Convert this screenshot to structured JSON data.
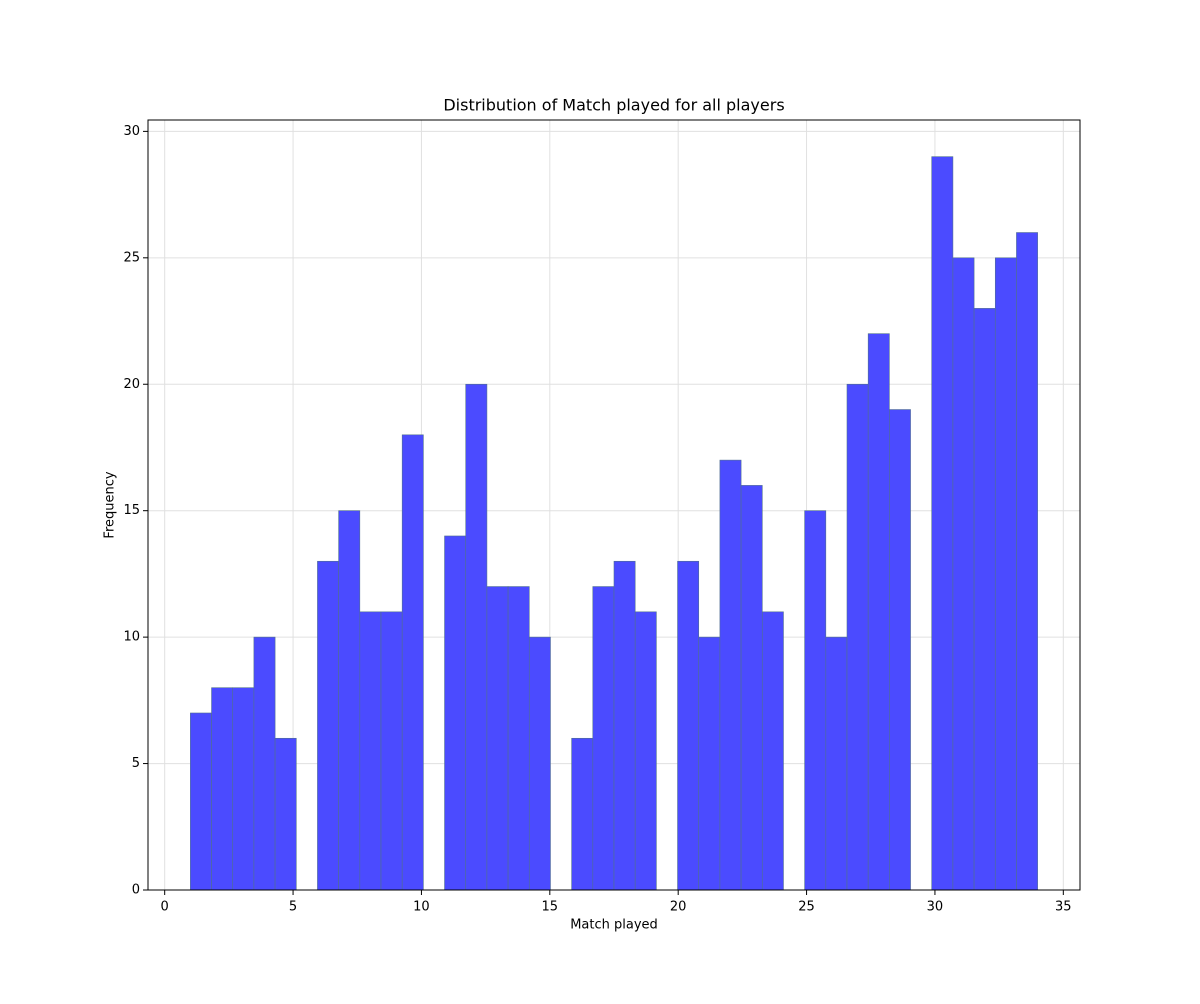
{
  "chart_data": {
    "type": "histogram",
    "title": "Distribution of Match played for all players",
    "x_label": "Match played",
    "y_label": "Frequency",
    "bins": [
      1,
      1.825,
      2.65,
      3.475,
      4.3,
      5.125,
      5.95,
      6.775,
      7.6,
      8.425,
      9.25,
      10.075,
      10.9,
      11.725,
      12.55,
      13.375,
      14.2,
      15.025,
      15.85,
      16.675,
      17.5,
      18.325,
      19.15,
      19.975,
      20.8,
      21.625,
      22.45,
      23.275,
      24.1,
      24.925,
      25.75,
      26.575,
      27.4,
      28.225,
      29.05,
      29.875,
      30.7,
      31.525,
      32.35,
      33.175,
      34
    ],
    "values": [
      7,
      8,
      8,
      10,
      6,
      0,
      13,
      15,
      11,
      11,
      18,
      0,
      14,
      20,
      12,
      12,
      10,
      0,
      6,
      12,
      13,
      11,
      0,
      13,
      10,
      17,
      16,
      11,
      0,
      15,
      10,
      20,
      22,
      19,
      0,
      29,
      25,
      23,
      25,
      26
    ],
    "color": "#4b4bff",
    "edgecolor": "#4f6f8f",
    "xlim": [
      -0.65,
      35.65
    ],
    "ylim": [
      0,
      30.45
    ],
    "xticks": [
      0,
      5,
      10,
      15,
      20,
      25,
      30,
      35
    ],
    "yticks": [
      0,
      5,
      10,
      15,
      20,
      25,
      30
    ],
    "grid": true
  }
}
